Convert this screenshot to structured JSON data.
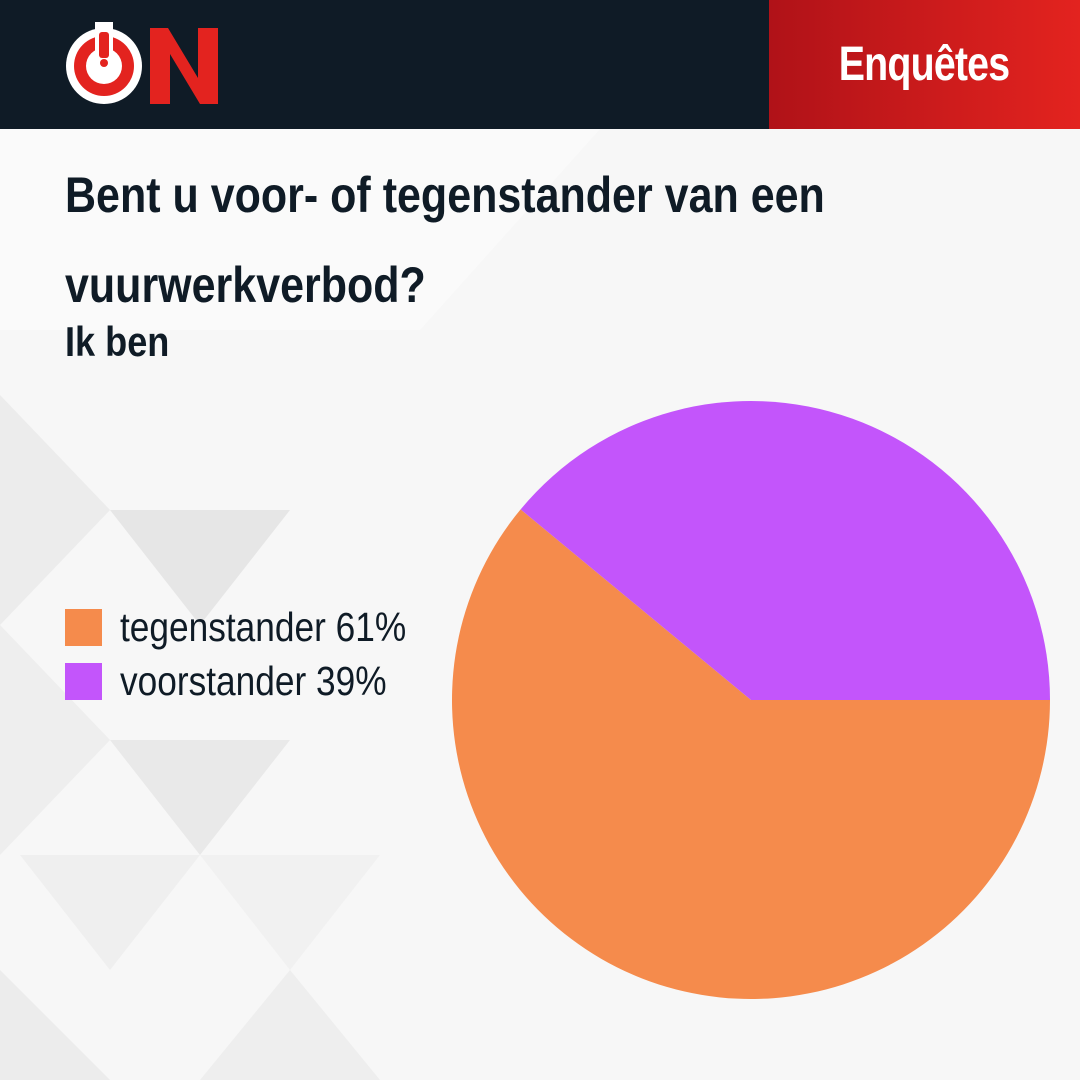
{
  "header": {
    "brand": "ON",
    "section_label": "Enquêtes"
  },
  "colors": {
    "header_bg": "#0f1b26",
    "accent_red": "#e3231f",
    "text_dark": "#0f1b26"
  },
  "chart_data": {
    "type": "pie",
    "title": "Bent u voor- of tegenstander van een vuurwerkverbod?",
    "subtitle": "Ik ben",
    "legend_position": "left",
    "slices": [
      {
        "label": "tegenstander",
        "value": 61,
        "display": "tegenstander 61%",
        "color": "#f58b4c"
      },
      {
        "label": "voorstander",
        "value": 39,
        "display": "voorstander 39%",
        "color": "#c355fb"
      }
    ]
  }
}
